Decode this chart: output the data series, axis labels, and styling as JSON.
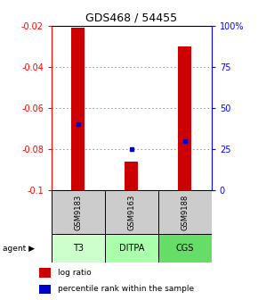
{
  "title": "GDS468 / 54455",
  "samples": [
    "GSM9183",
    "GSM9163",
    "GSM9188"
  ],
  "agents": [
    "T3",
    "DITPA",
    "CGS"
  ],
  "log_ratios": [
    -0.021,
    -0.086,
    -0.03
  ],
  "percentile_ranks": [
    40,
    25,
    30
  ],
  "bar_color": "#cc0000",
  "marker_color": "#0000cc",
  "ylim_left": [
    -0.1,
    -0.02
  ],
  "ylim_right": [
    0,
    100
  ],
  "yticks_left": [
    -0.1,
    -0.08,
    -0.06,
    -0.04,
    -0.02
  ],
  "yticks_right": [
    0,
    25,
    50,
    75,
    100
  ],
  "ytick_right_labels": [
    "0",
    "25",
    "50",
    "75",
    "100%"
  ],
  "bar_bottom": -0.1,
  "agent_colors": [
    "#ccffcc",
    "#aaffaa",
    "#66dd66"
  ],
  "sample_bg": "#cccccc",
  "grid_color": "#888888",
  "bar_width": 0.25
}
